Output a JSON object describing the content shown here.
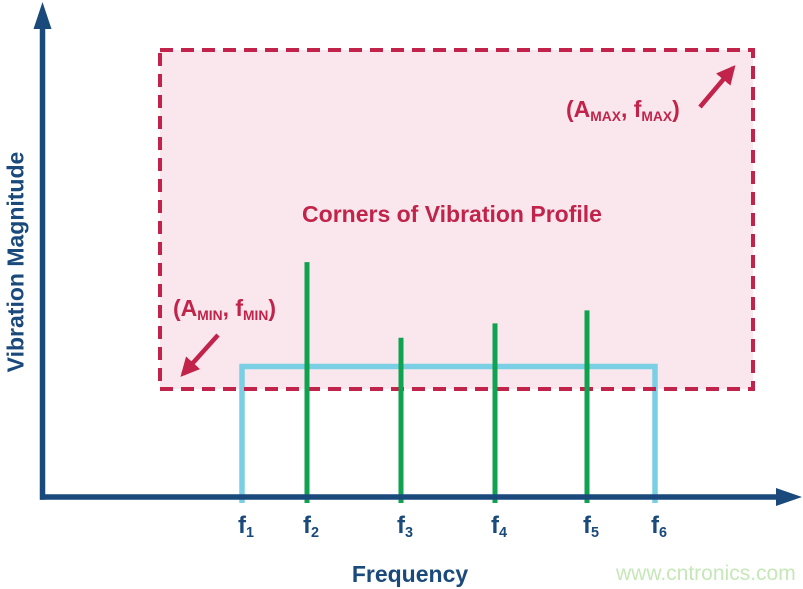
{
  "figure": {
    "watermark": {
      "text": "www.cntronics.com",
      "color": "#C6E7B8"
    }
  },
  "colors": {
    "axis_navy": "#1A4A7B",
    "region_crimson": "#C2234A",
    "region_fill_pink": "#F9E7ED",
    "spike_green": "#0FA24F",
    "floor_blue": "#7ACFE4"
  },
  "chart_data": {
    "type": "line",
    "title": "Corners of Vibration Profile",
    "xlabel": "Frequency",
    "ylabel": "Vibration Magnitude",
    "grid": false,
    "axis_arrows": {
      "x": true,
      "y": true
    },
    "x_ticks": [
      {
        "base": "f",
        "sub": "1"
      },
      {
        "base": "f",
        "sub": "2"
      },
      {
        "base": "f",
        "sub": "3"
      },
      {
        "base": "f",
        "sub": "4"
      },
      {
        "base": "f",
        "sub": "5"
      },
      {
        "base": "f",
        "sub": "6"
      }
    ],
    "region": {
      "label": "Corners of Vibration Profile",
      "style": "dashed",
      "fill": "#F9E7ED",
      "border": "#C2234A",
      "spans": "from (fMIN, AMIN) bottom-left to (fMAX, AMAX) top-right"
    },
    "series": [
      {
        "name": "vibration profile floor",
        "shape": "rectangular-outline",
        "color": "#7ACFE4",
        "x_span": [
          "f1",
          "f6"
        ],
        "magnitude": 1.0
      },
      {
        "name": "vibration spikes",
        "shape": "vertical-lines",
        "color": "#0FA24F",
        "points": [
          {
            "x": "f2",
            "magnitude": 1.8
          },
          {
            "x": "f3",
            "magnitude": 1.22
          },
          {
            "x": "f4",
            "magnitude": 1.33
          },
          {
            "x": "f5",
            "magnitude": 1.43
          }
        ]
      }
    ],
    "annotations": [
      {
        "id": "max-corner",
        "parts": {
          "p1": "(A",
          "s1": "MAX",
          "p2": ", f",
          "s2": "MAX",
          "p3": ")"
        },
        "points_to": "top-right corner of dashed region"
      },
      {
        "id": "min-corner",
        "parts": {
          "p1": "(A",
          "s1": "MIN",
          "p2": ", f",
          "s2": "MIN",
          "p3": ")"
        },
        "points_to": "bottom-left corner of dashed region"
      }
    ]
  }
}
